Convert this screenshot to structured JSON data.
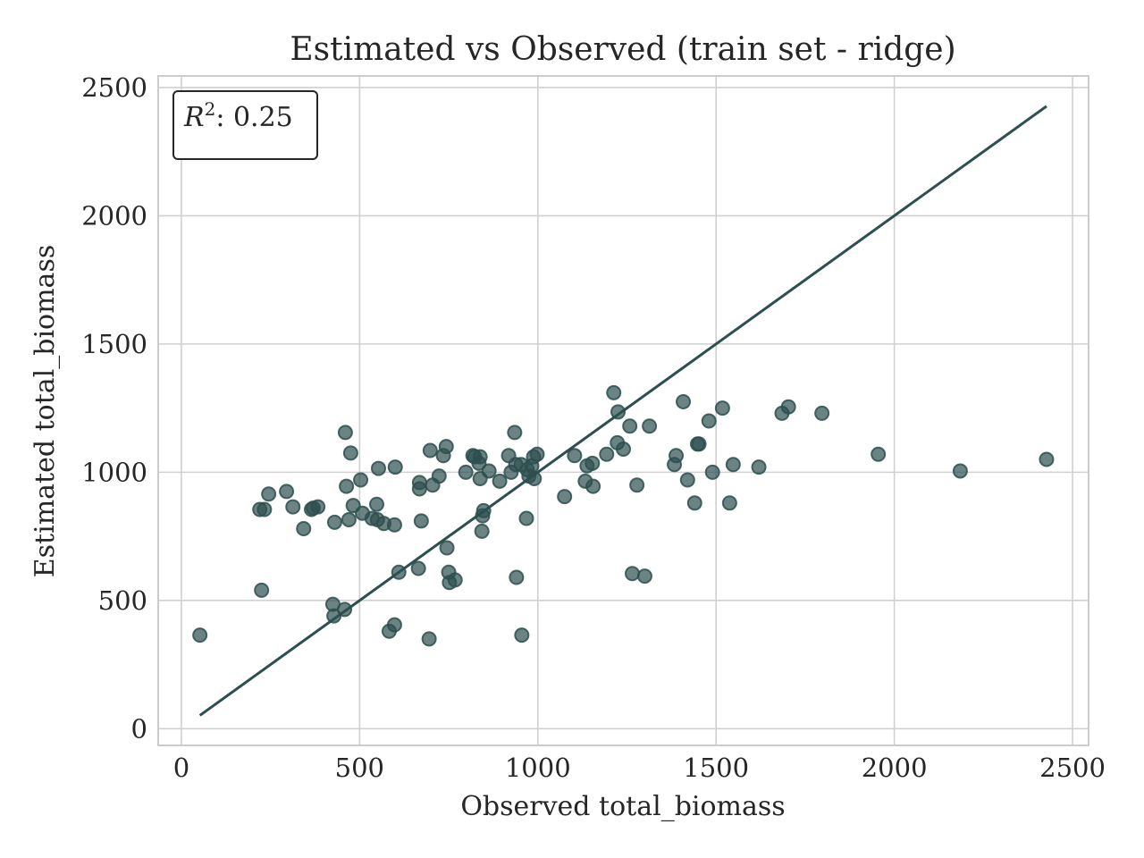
{
  "chart_data": {
    "type": "scatter",
    "title": "Estimated vs Observed (train set - ridge)",
    "xlabel": "Observed total_biomass",
    "ylabel": "Estimated total_biomass",
    "xlim": [
      -65,
      2545
    ],
    "ylim": [
      -65,
      2545
    ],
    "xticks": [
      0,
      500,
      1000,
      1500,
      2000,
      2500
    ],
    "yticks": [
      0,
      500,
      1000,
      1500,
      2000,
      2500
    ],
    "grid": true,
    "annotation": {
      "label": "R",
      "superscript": "2",
      "value": ": 0.25",
      "position": "top-left"
    },
    "colors": {
      "points": "#2d4f4f",
      "line": "#2d4f4f",
      "grid": "#d0d0d0"
    },
    "reference_line": {
      "x": [
        52,
        2427
      ],
      "y": [
        52,
        2427
      ]
    },
    "points": [
      [
        52,
        365
      ],
      [
        220,
        855
      ],
      [
        233,
        855
      ],
      [
        245,
        915
      ],
      [
        295,
        925
      ],
      [
        313,
        865
      ],
      [
        343,
        780
      ],
      [
        365,
        855
      ],
      [
        370,
        860
      ],
      [
        383,
        865
      ],
      [
        430,
        805
      ],
      [
        460,
        1155
      ],
      [
        463,
        945
      ],
      [
        470,
        815
      ],
      [
        475,
        1075
      ],
      [
        482,
        870
      ],
      [
        503,
        970
      ],
      [
        508,
        840
      ],
      [
        535,
        820
      ],
      [
        548,
        875
      ],
      [
        550,
        815
      ],
      [
        553,
        1015
      ],
      [
        568,
        800
      ],
      [
        598,
        795
      ],
      [
        600,
        1020
      ],
      [
        610,
        610
      ],
      [
        665,
        625
      ],
      [
        668,
        935
      ],
      [
        668,
        960
      ],
      [
        673,
        810
      ],
      [
        698,
        1085
      ],
      [
        705,
        950
      ],
      [
        723,
        985
      ],
      [
        735,
        1065
      ],
      [
        743,
        1100
      ],
      [
        745,
        705
      ],
      [
        750,
        610
      ],
      [
        752,
        570
      ],
      [
        768,
        580
      ],
      [
        798,
        1000
      ],
      [
        818,
        1065
      ],
      [
        823,
        1060
      ],
      [
        835,
        1035
      ],
      [
        838,
        975
      ],
      [
        843,
        770
      ],
      [
        845,
        830
      ],
      [
        848,
        850
      ],
      [
        863,
        1005
      ],
      [
        893,
        965
      ],
      [
        918,
        1065
      ],
      [
        925,
        1000
      ],
      [
        935,
        1155
      ],
      [
        938,
        1030
      ],
      [
        940,
        590
      ],
      [
        953,
        1030
      ],
      [
        955,
        365
      ],
      [
        968,
        820
      ],
      [
        970,
        1010
      ],
      [
        975,
        985
      ],
      [
        983,
        1025
      ],
      [
        988,
        1060
      ],
      [
        990,
        975
      ],
      [
        998,
        1070
      ],
      [
        1075,
        905
      ],
      [
        1103,
        1065
      ],
      [
        1133,
        965
      ],
      [
        1138,
        1025
      ],
      [
        1153,
        1035
      ],
      [
        1155,
        945
      ],
      [
        1193,
        1070
      ],
      [
        1213,
        1310
      ],
      [
        1223,
        1115
      ],
      [
        1225,
        1235
      ],
      [
        1240,
        1090
      ],
      [
        1258,
        1180
      ],
      [
        1265,
        605
      ],
      [
        1278,
        950
      ],
      [
        1300,
        595
      ],
      [
        1313,
        1180
      ],
      [
        1383,
        1030
      ],
      [
        1388,
        1065
      ],
      [
        1408,
        1275
      ],
      [
        1420,
        970
      ],
      [
        1440,
        880
      ],
      [
        1448,
        1110
      ],
      [
        1452,
        1110
      ],
      [
        1480,
        1200
      ],
      [
        1490,
        1000
      ],
      [
        1518,
        1250
      ],
      [
        1538,
        880
      ],
      [
        1548,
        1030
      ],
      [
        1620,
        1020
      ],
      [
        1685,
        1230
      ],
      [
        1703,
        1255
      ],
      [
        1797,
        1230
      ],
      [
        1955,
        1070
      ],
      [
        2185,
        1005
      ],
      [
        2427,
        1050
      ],
      [
        225,
        540
      ],
      [
        425,
        485
      ],
      [
        428,
        440
      ],
      [
        458,
        465
      ],
      [
        583,
        380
      ],
      [
        598,
        405
      ],
      [
        695,
        350
      ],
      [
        838,
        1060
      ]
    ]
  }
}
